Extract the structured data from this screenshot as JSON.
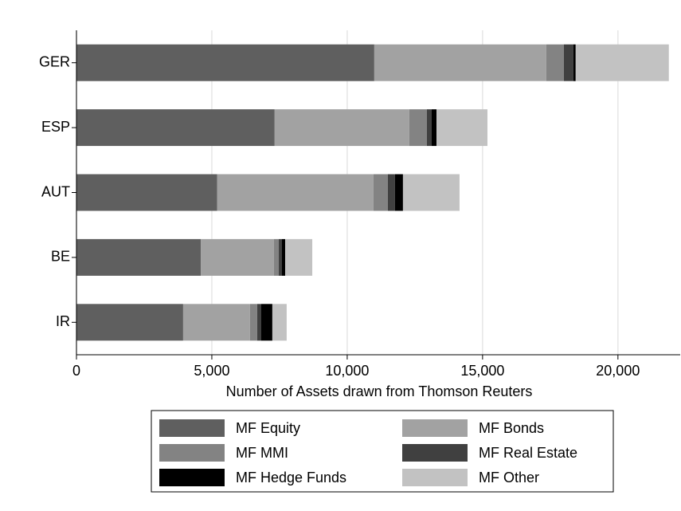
{
  "chart_data": {
    "type": "stacked-bar-horizontal",
    "xlabel": "Number of Assets drawn from Thomson Reuters",
    "categories": [
      "GER",
      "ESP",
      "AUT",
      "BE",
      "IR"
    ],
    "series": [
      {
        "name": "MF Equity",
        "color": "#5f5f5f",
        "values": [
          11000,
          7320,
          5200,
          4590,
          3940
        ]
      },
      {
        "name": "MF Bonds",
        "color": "#a2a2a2",
        "values": [
          6350,
          4970,
          5770,
          2700,
          2470
        ]
      },
      {
        "name": "MF MMI",
        "color": "#838383",
        "values": [
          650,
          650,
          530,
          180,
          265
        ]
      },
      {
        "name": "MF Real Estate",
        "color": "#404040",
        "values": [
          350,
          180,
          265,
          120,
          150
        ]
      },
      {
        "name": "MF Hedge Funds",
        "color": "#000000",
        "values": [
          90,
          180,
          295,
          120,
          410
        ]
      },
      {
        "name": "MF Other",
        "color": "#c2c2c2",
        "values": [
          3440,
          1880,
          2090,
          1000,
          530
        ]
      }
    ],
    "xlim": [
      0,
      22300
    ],
    "xticks": [
      0,
      {
        "value": 5000,
        "label": "5,000"
      },
      {
        "value": 10000,
        "label": "10,000"
      },
      {
        "value": 15000,
        "label": "15,000"
      },
      {
        "value": 20000,
        "label": "20,000"
      }
    ],
    "grid": true,
    "legend": "bottom"
  }
}
